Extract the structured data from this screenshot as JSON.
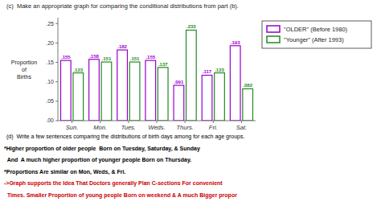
{
  "chart_data": {
    "type": "bar",
    "title": "(c)  Make an appropriate graph for comparing the conditional distributions from part (b).",
    "categories": [
      "Sun.",
      "Mon.",
      "Tues.",
      "Weds.",
      "Thurs.",
      "Fri.",
      "Sat."
    ],
    "series": [
      {
        "name": "\"OLDER\" (Before 1980)",
        "color": "#9900cc",
        "values": [
          0.155,
          0.158,
          0.182,
          0.155,
          0.091,
          0.117,
          0.193
        ],
        "value_labels": [
          ".155",
          ".158",
          ".182",
          ".155",
          ".091",
          ".117",
          ".193"
        ]
      },
      {
        "name": "\"Younger\" (After 1993)",
        "color": "#228B22",
        "values": [
          0.123,
          0.151,
          0.151,
          0.137,
          0.233,
          0.123,
          0.082
        ],
        "value_labels": [
          ".123",
          ".151",
          ".151",
          ".137",
          ".233",
          ".123",
          ".082"
        ]
      }
    ],
    "y_label": [
      "Proportion",
      "of",
      "Births"
    ],
    "ylim": [
      0,
      0.265
    ],
    "yticks": [
      {
        "value": 0.0,
        "label": ".00"
      },
      {
        "value": 0.05,
        "label": ".05"
      },
      {
        "value": 0.1,
        "label": ".10"
      },
      {
        "value": 0.15,
        "label": ".15"
      },
      {
        "value": 0.2,
        "label": ".20"
      },
      {
        "value": 0.25,
        "label": ".25"
      }
    ],
    "data_labels": true,
    "grid": false,
    "legend": "right",
    "annotations": [
      {
        "text": "(d)  Write a few sentences comparing the distributions of birth days among for each age groups.",
        "color": "#000000"
      },
      {
        "text": "*Higher proportion of older people  Born on Tuesday, Saturday, & Sunday",
        "color": "#000000"
      },
      {
        "text": "  And  A much higher proportion of younger people Born on Thursday.",
        "color": "#000000"
      },
      {
        "text": "*Proportions Are similar on Mon, Weds, & Fri.",
        "color": "#000000"
      },
      {
        "text": "->Graph supports the Idea That Doctors generally Plan C-sections For convenient",
        "color": "#cc0000"
      },
      {
        "text": "  Times. Smaller Proportion of young people Born on weekend & A much Bigger propor",
        "color": "#cc0000"
      }
    ]
  }
}
